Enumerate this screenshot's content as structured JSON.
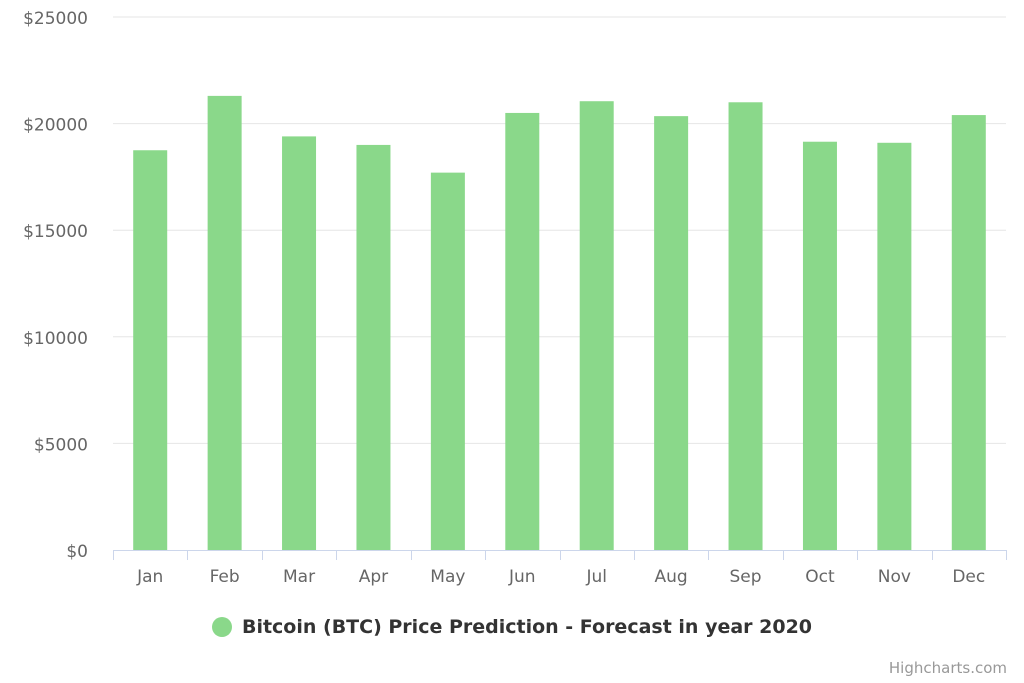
{
  "chart_data": {
    "type": "bar",
    "categories": [
      "Jan",
      "Feb",
      "Mar",
      "Apr",
      "May",
      "Jun",
      "Jul",
      "Aug",
      "Sep",
      "Oct",
      "Nov",
      "Dec"
    ],
    "series": [
      {
        "name": "Bitcoin (BTC) Price Prediction - Forecast in year 2020",
        "values": [
          18750,
          21300,
          19400,
          19000,
          17700,
          20500,
          21050,
          20350,
          21000,
          19150,
          19100,
          20400
        ],
        "color": "#8ad88a"
      }
    ],
    "y_ticks": [
      "$0",
      "$5000",
      "$10000",
      "$15000",
      "$20000",
      "$25000"
    ],
    "ylim": [
      0,
      25000
    ],
    "grid": true,
    "legend_position": "bottom-center"
  },
  "legend": {
    "label": "Bitcoin (BTC) Price Prediction - Forecast in year 2020",
    "color": "#8ad88a"
  },
  "credits": "Highcharts.com"
}
